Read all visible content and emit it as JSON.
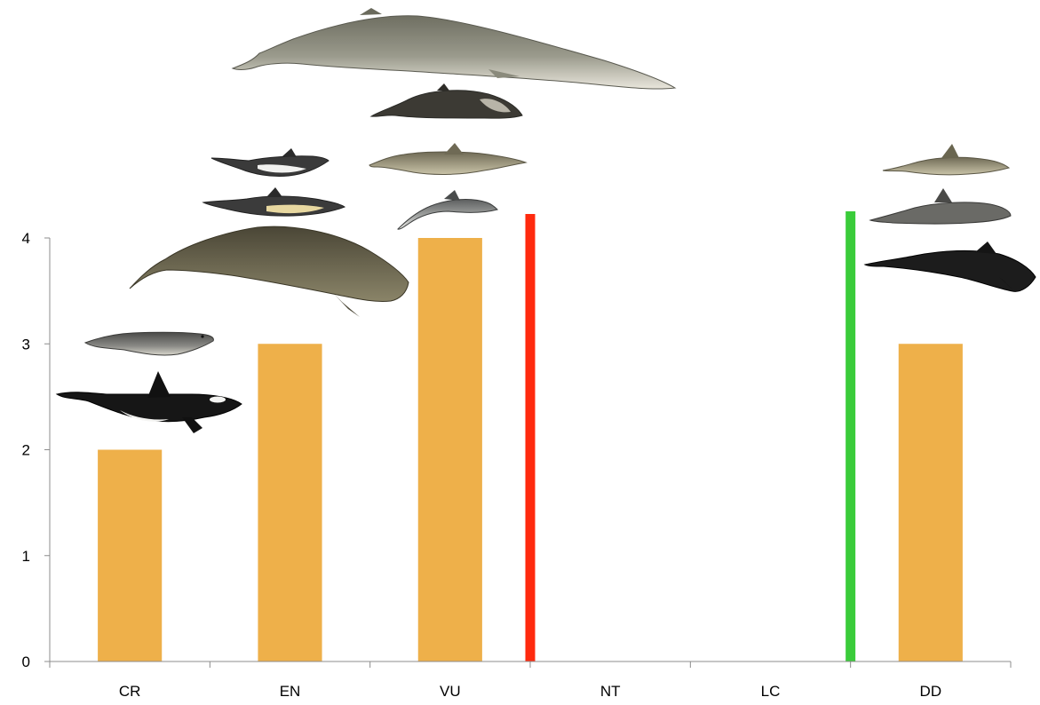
{
  "chart_data": {
    "type": "bar",
    "categories": [
      "CR",
      "EN",
      "VU",
      "NT",
      "LC",
      "DD"
    ],
    "values": [
      2,
      3,
      4,
      0,
      0,
      3
    ],
    "ylim": [
      0,
      4
    ],
    "yticks": [
      "0",
      "1",
      "2",
      "3",
      "4"
    ],
    "grid": false,
    "title": "",
    "xlabel": "",
    "ylabel": "",
    "colors": {
      "bar": "#EEB04A",
      "red_divider": "#FF2A0E",
      "green_divider": "#3ACC3A",
      "axis": "#8c8c8c"
    },
    "annotations": [
      {
        "type": "divider",
        "color": "red",
        "between": [
          "VU",
          "NT"
        ]
      },
      {
        "type": "divider",
        "color": "green",
        "between": [
          "LC",
          "DD"
        ]
      }
    ],
    "illustrations": [
      {
        "category": "CR",
        "icon": "orca-illustration"
      },
      {
        "category": "CR",
        "icon": "seal-illustration"
      },
      {
        "category": "EN",
        "icon": "sperm-whale-illustration"
      },
      {
        "category": "EN",
        "icon": "common-dolphin-illustration"
      },
      {
        "category": "EN",
        "icon": "hourglass-dolphin-illustration"
      },
      {
        "category": "VU",
        "icon": "fin-whale-illustration"
      },
      {
        "category": "VU",
        "icon": "beaked-whale-illustration"
      },
      {
        "category": "VU",
        "icon": "bottlenose-dolphin-illustration"
      },
      {
        "category": "VU",
        "icon": "striped-dolphin-illustration"
      },
      {
        "category": "DD",
        "icon": "rough-toothed-dolphin-illustration"
      },
      {
        "category": "DD",
        "icon": "rissos-dolphin-illustration"
      },
      {
        "category": "DD",
        "icon": "false-killer-whale-illustration"
      }
    ]
  }
}
